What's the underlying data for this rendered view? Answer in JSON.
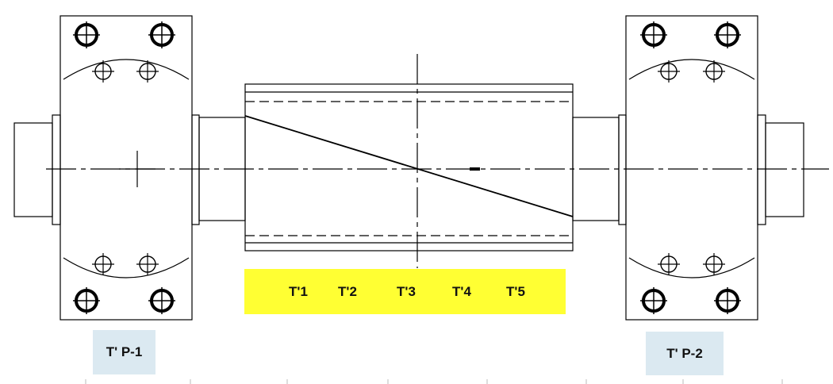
{
  "labels": {
    "shaft_points": [
      "T'1",
      "T'2",
      "T'3",
      "T'4",
      "T'5"
    ],
    "left_bearing": "T' P-1",
    "right_bearing": "T' P-2"
  },
  "colors": {
    "line": "#000000",
    "highlight": "#ffff33",
    "label_box": "#dbe9f1"
  }
}
